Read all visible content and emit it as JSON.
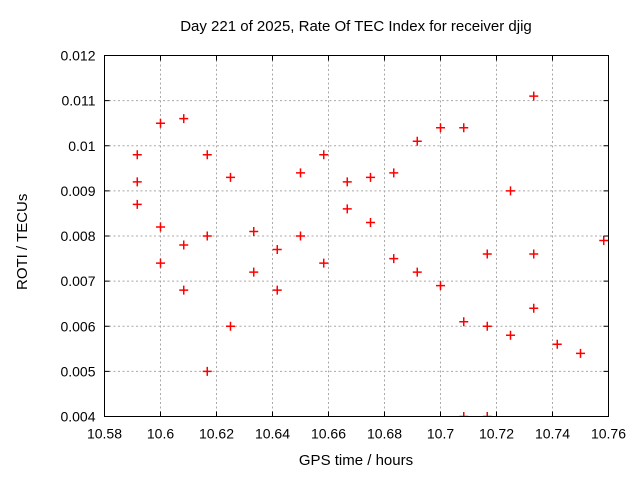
{
  "chart_data": {
    "type": "scatter",
    "title": "Day 221 of 2025, Rate Of TEC Index for receiver djig",
    "xlabel": "GPS time / hours",
    "ylabel": "ROTI / TECUs",
    "xlim": [
      10.58,
      10.76
    ],
    "ylim": [
      0.004,
      0.012
    ],
    "grid": true,
    "legend": "none",
    "grid_color": "#a8a8a8",
    "border_color": "#000000",
    "marker": {
      "shape": "plus",
      "color": "#ff0000",
      "size": 9
    },
    "x_ticks": [
      {
        "v": 10.58,
        "label": "10.58"
      },
      {
        "v": 10.6,
        "label": "10.6"
      },
      {
        "v": 10.62,
        "label": "10.62"
      },
      {
        "v": 10.64,
        "label": "10.64"
      },
      {
        "v": 10.66,
        "label": "10.66"
      },
      {
        "v": 10.68,
        "label": "10.68"
      },
      {
        "v": 10.7,
        "label": "10.7"
      },
      {
        "v": 10.72,
        "label": "10.72"
      },
      {
        "v": 10.74,
        "label": "10.74"
      },
      {
        "v": 10.76,
        "label": "10.76"
      }
    ],
    "y_ticks": [
      {
        "v": 0.004,
        "label": "0.004"
      },
      {
        "v": 0.005,
        "label": "0.005"
      },
      {
        "v": 0.006,
        "label": "0.006"
      },
      {
        "v": 0.007,
        "label": "0.007"
      },
      {
        "v": 0.008,
        "label": "0.008"
      },
      {
        "v": 0.009,
        "label": "0.009"
      },
      {
        "v": 0.01,
        "label": "0.01"
      },
      {
        "v": 0.011,
        "label": "0.011"
      },
      {
        "v": 0.012,
        "label": "0.012"
      }
    ],
    "points": [
      [
        10.5917,
        0.0098
      ],
      [
        10.5917,
        0.0092
      ],
      [
        10.5917,
        0.0087
      ],
      [
        10.6,
        0.0105
      ],
      [
        10.6,
        0.0082
      ],
      [
        10.6,
        0.0074
      ],
      [
        10.6083,
        0.0106
      ],
      [
        10.6083,
        0.0078
      ],
      [
        10.6083,
        0.0068
      ],
      [
        10.6167,
        0.0098
      ],
      [
        10.6167,
        0.008
      ],
      [
        10.6167,
        0.005
      ],
      [
        10.625,
        0.0093
      ],
      [
        10.625,
        0.006
      ],
      [
        10.6333,
        0.0081
      ],
      [
        10.6333,
        0.0072
      ],
      [
        10.6417,
        0.0077
      ],
      [
        10.6417,
        0.0068
      ],
      [
        10.65,
        0.0094
      ],
      [
        10.65,
        0.008
      ],
      [
        10.6583,
        0.0098
      ],
      [
        10.6583,
        0.0074
      ],
      [
        10.6667,
        0.0092
      ],
      [
        10.6667,
        0.0086
      ],
      [
        10.675,
        0.0093
      ],
      [
        10.675,
        0.0083
      ],
      [
        10.6833,
        0.0094
      ],
      [
        10.6833,
        0.0075
      ],
      [
        10.6917,
        0.0101
      ],
      [
        10.6917,
        0.0072
      ],
      [
        10.7,
        0.0104
      ],
      [
        10.7,
        0.0069
      ],
      [
        10.7083,
        0.0104
      ],
      [
        10.7083,
        0.0061
      ],
      [
        10.7083,
        0.004
      ],
      [
        10.7167,
        0.0076
      ],
      [
        10.7167,
        0.006
      ],
      [
        10.7167,
        0.004
      ],
      [
        10.725,
        0.009
      ],
      [
        10.725,
        0.0058
      ],
      [
        10.7333,
        0.0111
      ],
      [
        10.7333,
        0.0076
      ],
      [
        10.7333,
        0.0064
      ],
      [
        10.7417,
        0.0056
      ],
      [
        10.75,
        0.0054
      ],
      [
        10.7583,
        0.0079
      ]
    ]
  }
}
